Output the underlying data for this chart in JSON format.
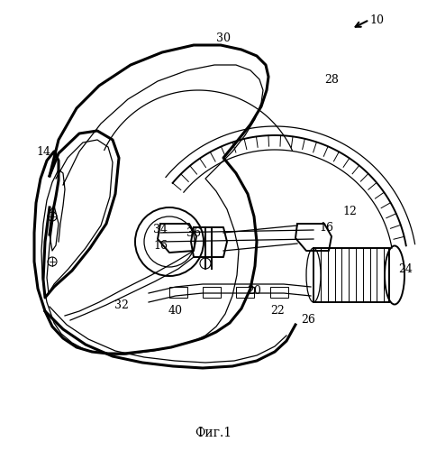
{
  "title": "Фиг.1",
  "background_color": "#ffffff",
  "figsize": [
    4.74,
    5.0
  ],
  "dpi": 100,
  "image_b64": ""
}
